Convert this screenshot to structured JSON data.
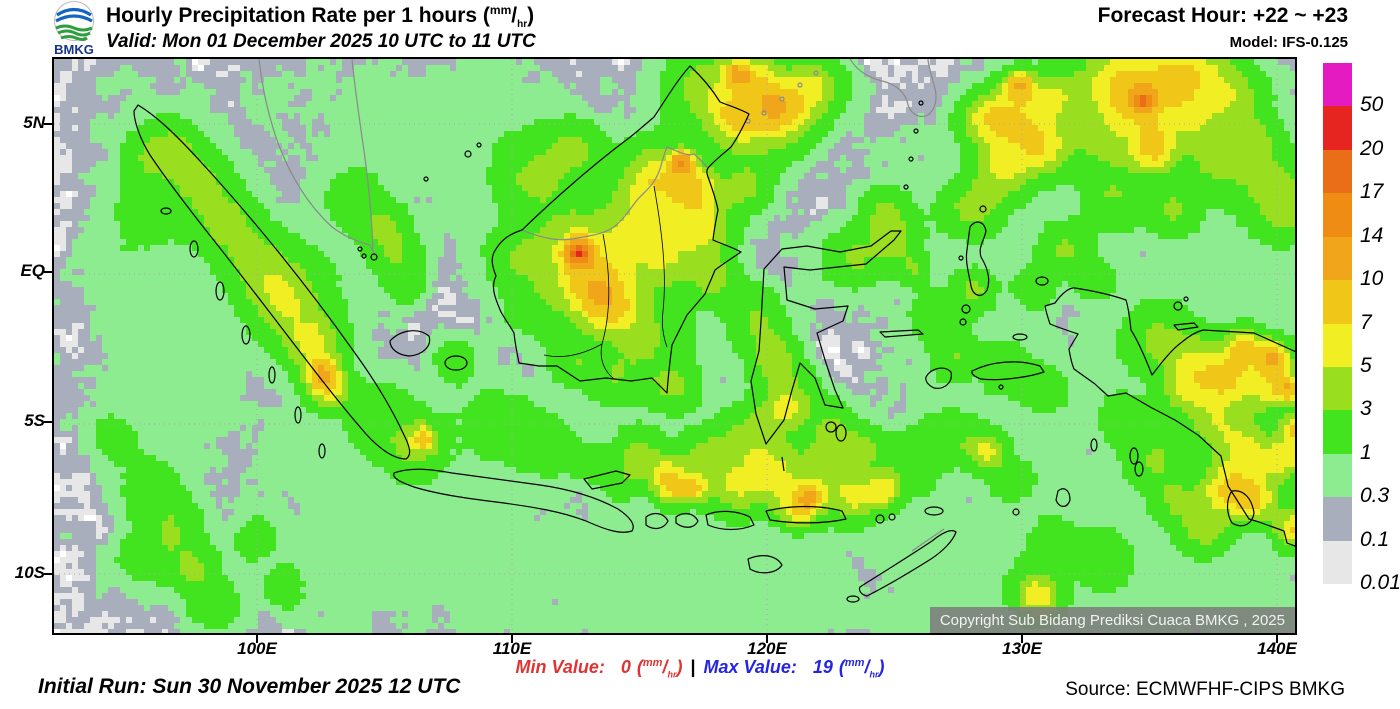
{
  "header": {
    "agency": "BMKG",
    "title_prefix": "Hourly Precipitation Rate per 1 hours ",
    "valid": "Valid: Mon 01 December 2025 10 UTC to 11 UTC",
    "forecast_hour": "Forecast Hour: +22 ~ +23",
    "model": "Model: IFS-0.125"
  },
  "unit": {
    "open": "(",
    "top": "mm",
    "slash": "/",
    "bottom": "hr",
    "close": ")"
  },
  "map": {
    "lat_ticks": [
      "5N",
      "EQ",
      "5S",
      "10S"
    ],
    "lon_ticks": [
      "100E",
      "110E",
      "120E",
      "130E",
      "140E"
    ],
    "copyright": "Copyright Sub Bidang Prediksi Cuaca BMKG , 2025"
  },
  "colorbar": {
    "unit": "mm/hr",
    "segments": [
      {
        "color": "#e41bc1",
        "label": "50"
      },
      {
        "color": "#e62420",
        "label": "20"
      },
      {
        "color": "#ea6e17",
        "label": "17"
      },
      {
        "color": "#ee8c13",
        "label": "14"
      },
      {
        "color": "#f0a51b",
        "label": "10"
      },
      {
        "color": "#f0c619",
        "label": "7"
      },
      {
        "color": "#f2ee24",
        "label": "5"
      },
      {
        "color": "#9ade20",
        "label": "3"
      },
      {
        "color": "#41e41f",
        "label": "1"
      },
      {
        "color": "#8cec8f",
        "label": "0.3"
      },
      {
        "color": "#a9aebd",
        "label": "0.1"
      },
      {
        "color": "#e7e7e7",
        "label": "0.01"
      }
    ]
  },
  "stats": {
    "min_label": "Min Value:",
    "min_value": "0",
    "min_color": "#e03434",
    "separator": "|",
    "max_label": "Max Value:",
    "max_value": "19",
    "max_color": "#2626e0"
  },
  "footer": {
    "initial_run": "Initial Run: Sun 30 November 2025 12 UTC",
    "source": "Source: ECMWFHF-CIPS BMKG"
  }
}
